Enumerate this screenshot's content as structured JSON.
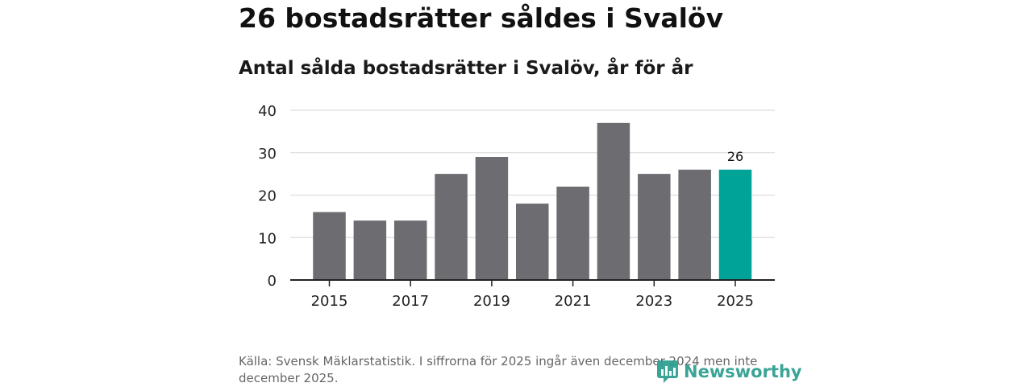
{
  "header": {
    "title": "26 bostadsrätter såldes i Svalöv",
    "subtitle": "Antal sålda bostadsrätter i Svalöv, år för år"
  },
  "footer": {
    "source": "Källa: Svensk Mäklarstatistik. I siffrorna för 2025 ingår även december 2024 men inte december 2025.",
    "brand": "Newsworthy"
  },
  "colors": {
    "bar": "#6d6c71",
    "highlight": "#00a398",
    "grid": "#dddddd",
    "axis": "#222222",
    "brand": "#2a9d8f"
  },
  "chart_data": {
    "type": "bar",
    "title": "Antal sålda bostadsrätter i Svalöv, år för år",
    "xlabel": "",
    "ylabel": "",
    "categories": [
      "2015",
      "2016",
      "2017",
      "2018",
      "2019",
      "2020",
      "2021",
      "2022",
      "2023",
      "2024",
      "2025"
    ],
    "values": [
      16,
      14,
      14,
      25,
      29,
      18,
      22,
      37,
      25,
      26,
      26
    ],
    "ylim": [
      0,
      40
    ],
    "yticks": [
      0,
      10,
      20,
      30,
      40
    ],
    "xtick_labels": [
      "2015",
      "2017",
      "2019",
      "2021",
      "2023",
      "2025"
    ],
    "highlight_category": "2025",
    "data_labels": [
      {
        "category": "2025",
        "text": "26"
      }
    ],
    "grid": true,
    "legend": "none"
  }
}
